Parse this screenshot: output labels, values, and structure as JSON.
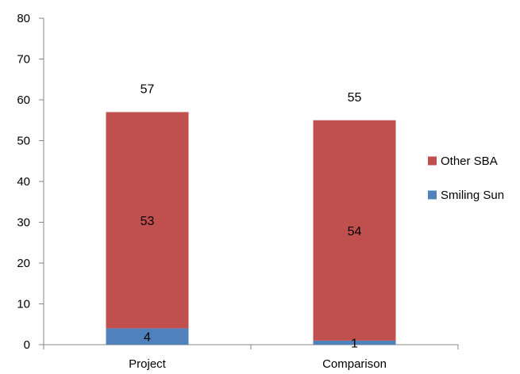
{
  "chart_data": {
    "type": "bar",
    "stacked": true,
    "categories": [
      "Project",
      "Comparison"
    ],
    "series": [
      {
        "name": "Smiling Sun",
        "values": [
          4,
          1
        ],
        "color": "#4f81bd"
      },
      {
        "name": "Other SBA",
        "values": [
          53,
          54
        ],
        "color": "#c0504d"
      }
    ],
    "totals": [
      57,
      55
    ],
    "ylim": [
      0,
      80
    ],
    "yticks": [
      0,
      10,
      20,
      30,
      40,
      50,
      60,
      70,
      80
    ],
    "grid": false,
    "legend_position": "right",
    "legend_order": [
      "Other SBA",
      "Smiling Sun"
    ]
  }
}
